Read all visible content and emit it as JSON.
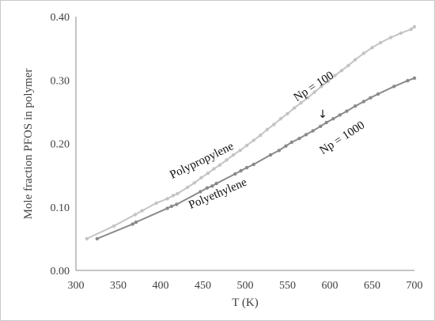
{
  "chart_data": {
    "type": "line",
    "title": "",
    "xlabel": "T (K)",
    "ylabel": "Mole fraction PFOS in polymer",
    "xlim": [
      300,
      700
    ],
    "ylim": [
      0.0,
      0.4
    ],
    "x_ticks": [
      "300",
      "350",
      "400",
      "450",
      "500",
      "550",
      "600",
      "650",
      "700"
    ],
    "y_ticks": [
      "0.00",
      "0.10",
      "0.20",
      "0.30",
      "0.40"
    ],
    "grid": false,
    "legend": "none",
    "series": [
      {
        "label": "Polypropylene",
        "color": "#c4c4c4",
        "x": [
          313,
          345,
          370,
          378,
          395,
          408,
          415,
          420,
          432,
          440,
          448,
          456,
          463,
          470,
          478,
          486,
          494,
          502,
          510,
          518,
          526,
          534,
          542,
          550,
          558,
          566,
          574,
          582,
          590,
          598,
          606,
          614,
          622,
          630,
          640,
          650,
          660,
          672,
          684,
          696,
          700
        ],
        "y": [
          0.05,
          0.07,
          0.088,
          0.094,
          0.106,
          0.113,
          0.118,
          0.121,
          0.131,
          0.138,
          0.146,
          0.153,
          0.16,
          0.166,
          0.174,
          0.182,
          0.189,
          0.197,
          0.205,
          0.213,
          0.222,
          0.23,
          0.239,
          0.247,
          0.256,
          0.264,
          0.272,
          0.281,
          0.29,
          0.298,
          0.307,
          0.315,
          0.323,
          0.332,
          0.342,
          0.351,
          0.359,
          0.367,
          0.374,
          0.38,
          0.384
        ]
      },
      {
        "label": "Polyethylene",
        "color": "#8a8a8a",
        "x": [
          325,
          367,
          371,
          408,
          413,
          419,
          447,
          455,
          461,
          466,
          488,
          495,
          502,
          510,
          530,
          540,
          548,
          555,
          564,
          572,
          580,
          589,
          596,
          604,
          612,
          620,
          630,
          640,
          648,
          657,
          676,
          692,
          700
        ],
        "y": [
          0.05,
          0.073,
          0.076,
          0.098,
          0.101,
          0.104,
          0.124,
          0.13,
          0.133,
          0.137,
          0.152,
          0.157,
          0.162,
          0.167,
          0.182,
          0.189,
          0.196,
          0.202,
          0.208,
          0.214,
          0.22,
          0.227,
          0.233,
          0.239,
          0.245,
          0.251,
          0.259,
          0.266,
          0.272,
          0.278,
          0.29,
          0.299,
          0.303
        ]
      }
    ],
    "annotations": {
      "polypropylene_label": "Polypropylene",
      "polyethylene_label": "Polyethylene",
      "np100_label": "Np = 100",
      "np1000_label": "Np = 1000",
      "arrow": "↓"
    }
  }
}
